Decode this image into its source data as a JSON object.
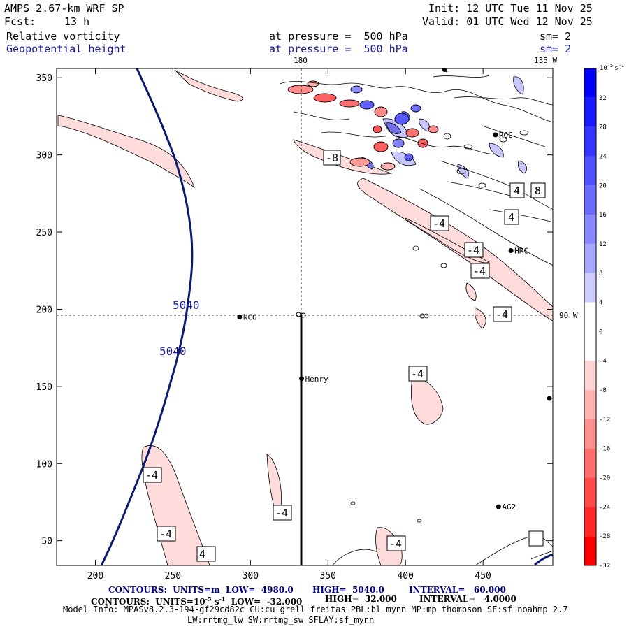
{
  "header": {
    "model": "AMPS 2.67-km WRF SP",
    "init": "Init: 12 UTC Tue 11 Nov 25",
    "fcst_label": "Fcst:",
    "fcst_value": "13 h",
    "valid": "Valid: 01 UTC Wed 12 Nov 25",
    "field1_name": "Relative vorticity",
    "field1_level": "at pressure =  500 hPa",
    "field1_smooth": "sm= 2",
    "field2_name": "Geopotential height",
    "field2_level": "at pressure =  500 hPa",
    "field2_smooth": "sm= 2"
  },
  "map": {
    "top_lon_labels": [
      "180",
      "135 W"
    ],
    "right_lon_label": "90 W",
    "x_ticks": [
      "200",
      "250",
      "300",
      "350",
      "400",
      "450"
    ],
    "y_ticks": [
      "50",
      "100",
      "150",
      "200",
      "250",
      "300",
      "350"
    ],
    "x_domain": [
      175,
      495
    ],
    "y_domain": [
      34,
      356
    ],
    "height_contour_labels": [
      "5040",
      "5040"
    ],
    "vorticity_contour_labels": [
      "-8",
      "4",
      "8",
      "-4",
      "4",
      "-4",
      "-4",
      "-4",
      "-4",
      "-4",
      "-4",
      "-4",
      "-4",
      "4"
    ],
    "stations": [
      {
        "name": "NCO",
        "x": 293,
        "y": 195
      },
      {
        "name": "Henry",
        "x": 333,
        "y": 155
      },
      {
        "name": "ROC",
        "x": 458,
        "y": 313
      },
      {
        "name": "HRC",
        "x": 468,
        "y": 238
      },
      {
        "name": "AG2",
        "x": 460,
        "y": 72
      }
    ]
  },
  "colorbar": {
    "units_prefix": "10",
    "units_exp": "-5",
    "units_suffix": "s",
    "units_suffix_exp": "-1",
    "labels": [
      "32",
      "28",
      "24",
      "20",
      "16",
      "12",
      "8",
      "4",
      "0",
      "-4",
      "-8",
      "-12",
      "-16",
      "-20",
      "-24",
      "-28",
      "-32"
    ],
    "colors": [
      "#0000ff",
      "#1a1aff",
      "#3535ff",
      "#5050ff",
      "#6b6bff",
      "#8888ff",
      "#a8a8ff",
      "#ccccff",
      "#ffffff",
      "#ffffff",
      "#ffd6d6",
      "#ffb4b4",
      "#ff9090",
      "#ff6e6e",
      "#ff4a4a",
      "#ff2828",
      "#ff0000"
    ]
  },
  "footer": {
    "line1_a": "CONTOURS:  UNITS=m  LOW=  4980.0",
    "line1_b": "HIGH=  5040.0",
    "line1_c": "INTERVAL=   60.000",
    "line2_a": "CONTOURS:  UNITS=10",
    "line2_exp": "-5",
    "line2_s": " s",
    "line2_exp2": "-1",
    "line2_b": "  LOW=  -32.000",
    "line2_c": "HIGH=  32.000",
    "line2_d": "INTERVAL=   4.0000",
    "info1": "Model Info: MPASv8.2.3-194-gf29cd82c CU:cu_grell_freitas PBL:bl_mynn MP:mp_thompson SF:sf_noahmp 2.7",
    "info2": "LW:rrtmg_lw SW:rrtmg_sw SFLAY:sf_mynn"
  }
}
